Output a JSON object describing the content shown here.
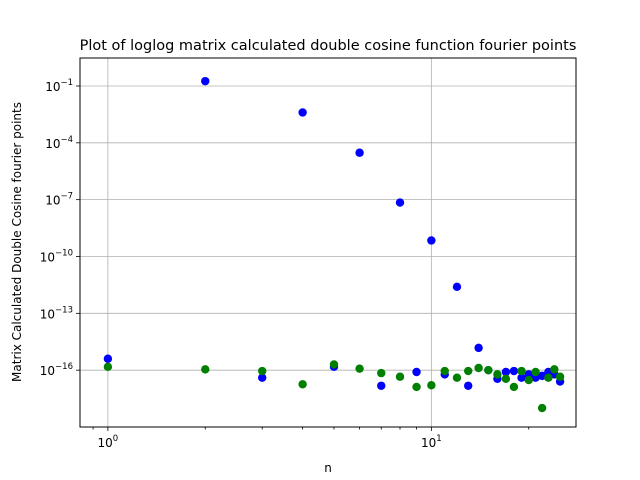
{
  "chart_data": {
    "type": "scatter",
    "title": "Plot of loglog matrix calculated double cosine function fourier points",
    "xlabel": "n",
    "ylabel": "Matrix Calculated Double Cosine fourier points",
    "xscale": "log",
    "yscale": "log",
    "xlim": [
      0.82,
      28
    ],
    "ylim": [
      1e-19,
      3
    ],
    "grid": true,
    "x_ticks": [
      {
        "value": 1,
        "base": "10",
        "exp": "0"
      },
      {
        "value": 10,
        "base": "10",
        "exp": "1"
      }
    ],
    "y_ticks": [
      {
        "value": 1e-16,
        "base": "10",
        "exp": "−16"
      },
      {
        "value": 1e-13,
        "base": "10",
        "exp": "−13"
      },
      {
        "value": 1e-10,
        "base": "10",
        "exp": "−10"
      },
      {
        "value": 1e-07,
        "base": "10",
        "exp": "−7"
      },
      {
        "value": 0.0001,
        "base": "10",
        "exp": "−4"
      },
      {
        "value": 0.1,
        "base": "10",
        "exp": "−1"
      }
    ],
    "series": [
      {
        "color": "#0000ff",
        "points": [
          [
            1,
            4e-16
          ],
          [
            2,
            0.18
          ],
          [
            3,
            4e-17
          ],
          [
            4,
            0.004
          ],
          [
            5,
            1.5e-16
          ],
          [
            6,
            3e-05
          ],
          [
            7,
            1.5e-17
          ],
          [
            8,
            7e-08
          ],
          [
            9,
            8e-17
          ],
          [
            10,
            7e-10
          ],
          [
            11,
            6e-17
          ],
          [
            12,
            2.5e-12
          ],
          [
            13,
            1.5e-17
          ],
          [
            14,
            1.5e-15
          ],
          [
            15,
            1e-16
          ],
          [
            16,
            3.5e-17
          ],
          [
            17,
            8e-17
          ],
          [
            18,
            9e-17
          ],
          [
            19,
            4e-17
          ],
          [
            20,
            6e-17
          ],
          [
            21,
            4e-17
          ],
          [
            22,
            5e-17
          ],
          [
            23,
            8e-17
          ],
          [
            24,
            6e-17
          ],
          [
            25,
            2.5e-17
          ]
        ]
      },
      {
        "color": "#008000",
        "points": [
          [
            1,
            1.5e-16
          ],
          [
            2,
            1.1e-16
          ],
          [
            3,
            9e-17
          ],
          [
            4,
            1.8e-17
          ],
          [
            5,
            2e-16
          ],
          [
            6,
            1.2e-16
          ],
          [
            7,
            7e-17
          ],
          [
            8,
            4.5e-17
          ],
          [
            9,
            1.3e-17
          ],
          [
            10,
            1.6e-17
          ],
          [
            11,
            9e-17
          ],
          [
            12,
            4e-17
          ],
          [
            13,
            9e-17
          ],
          [
            14,
            1.3e-16
          ],
          [
            15,
            1e-16
          ],
          [
            16,
            6e-17
          ],
          [
            17,
            3.5e-17
          ],
          [
            18,
            1.3e-17
          ],
          [
            19,
            9e-17
          ],
          [
            20,
            3e-17
          ],
          [
            21,
            8e-17
          ],
          [
            22,
            1e-18
          ],
          [
            23,
            4e-17
          ],
          [
            24,
            1.1e-16
          ],
          [
            25,
            4.5e-17
          ]
        ]
      }
    ]
  }
}
